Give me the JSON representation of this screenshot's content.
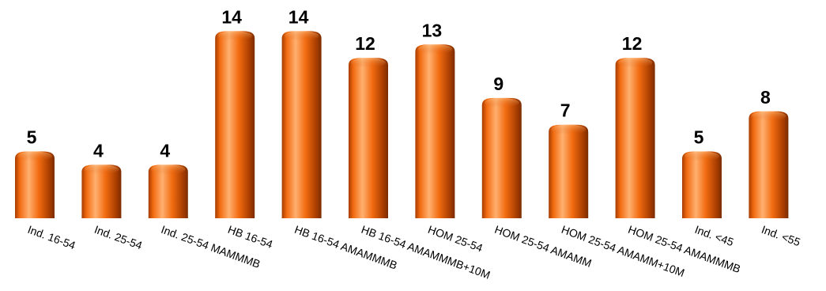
{
  "chart_data": {
    "type": "bar",
    "style": "3d-cylinder",
    "categories": [
      "Ind. 16-54",
      "Ind. 25-54",
      "Ind. 25-54 MAMMMB",
      "HB 16-54",
      "HB 16-54 AMAMMMB",
      "HB 16-54 AMAMMMB+10M",
      "HOM 25-54",
      "HOM 25-54 AMAMM",
      "HOM 25-54 AMAMM+10M",
      "HOM 25-54 AMAMMMB",
      "Ind. <45",
      "Ind. <55"
    ],
    "values": [
      5,
      4,
      4,
      14,
      14,
      12,
      13,
      9,
      7,
      12,
      5,
      8
    ],
    "title": "",
    "xlabel": "",
    "ylabel": "",
    "ylim": [
      0,
      14
    ],
    "grid": false,
    "legend": "none",
    "data_labels": true,
    "category_label_rotation": 20
  },
  "colors": {
    "bar_light": "#ffb070",
    "bar_main": "#f26b10",
    "bar_dark": "#a63c00",
    "cap_light": "#ffc58a",
    "cap_dark": "#d45a0c"
  }
}
